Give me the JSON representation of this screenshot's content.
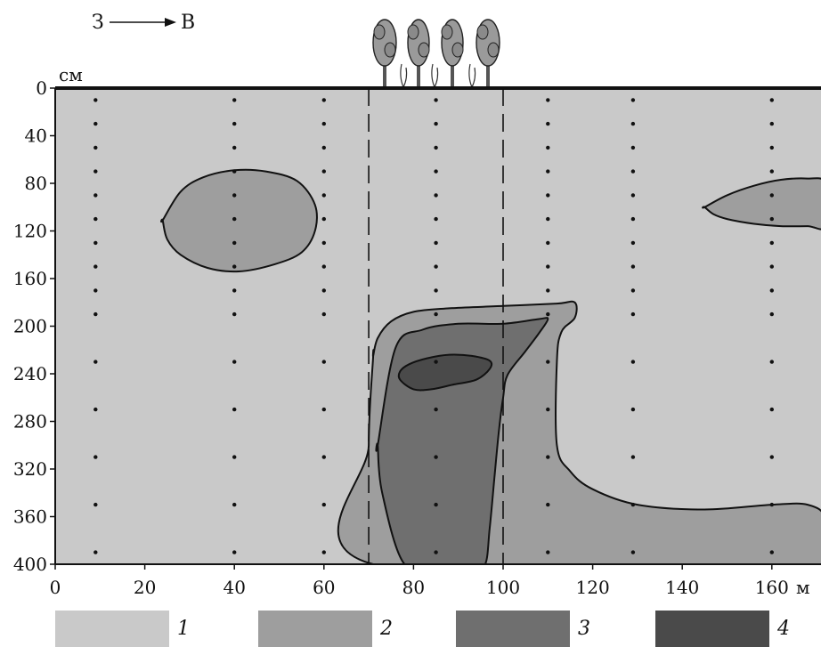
{
  "chart_data": {
    "type": "heatmap",
    "direction": {
      "from": "З",
      "to": "В"
    },
    "y_unit": "см",
    "x_unit": "м",
    "xlim": [
      0,
      172
    ],
    "ylim": [
      0,
      400
    ],
    "x_ticks": [
      0,
      20,
      40,
      60,
      80,
      100,
      120,
      140,
      160
    ],
    "y_ticks": [
      0,
      40,
      80,
      120,
      160,
      200,
      240,
      280,
      320,
      360,
      400
    ],
    "x_tick_labels": [
      "0",
      "20",
      "40",
      "60",
      "80",
      "100",
      "120",
      "140",
      "160"
    ],
    "y_tick_labels": [
      "0",
      "40",
      "80",
      "120",
      "160",
      "200",
      "240",
      "280",
      "320",
      "360",
      "400"
    ],
    "forest_belt_x": [
      70,
      100
    ],
    "sample_columns_x": [
      9,
      40,
      60,
      85,
      110,
      129,
      160
    ],
    "sample_depths": [
      10,
      30,
      50,
      70,
      90,
      110,
      130,
      150,
      170,
      190,
      230,
      270,
      310,
      350,
      390
    ],
    "zones": [
      {
        "class": 2,
        "x": [
          24,
          28,
          33,
          40,
          47,
          54,
          58,
          58,
          55,
          49,
          41,
          34,
          28,
          25,
          24
        ],
        "y": [
          111,
          87,
          75,
          69,
          70,
          78,
          98,
          120,
          138,
          148,
          154,
          151,
          140,
          127,
          111
        ]
      },
      {
        "class": 2,
        "x": [
          145,
          150,
          156,
          162,
          168,
          172,
          172,
          168,
          162,
          156,
          150,
          147,
          145
        ],
        "y": [
          100,
          90,
          82,
          77,
          76,
          80,
          116,
          116,
          116,
          114,
          110,
          106,
          100
        ]
      },
      {
        "class": 2,
        "x": [
          71,
          72,
          75,
          80,
          88,
          100,
          112,
          116,
          116,
          113,
          112,
          112,
          115,
          120,
          130,
          145,
          160,
          168,
          172,
          172,
          71,
          70,
          71
        ],
        "y": [
          225,
          210,
          196,
          188,
          185,
          183,
          181,
          180,
          193,
          205,
          230,
          300,
          322,
          337,
          350,
          354,
          350,
          350,
          362,
          400,
          400,
          300,
          225
        ]
      },
      {
        "class": 3,
        "x": [
          72,
          76,
          82,
          90,
          100,
          108,
          110,
          108,
          105,
          101,
          100,
          99,
          98,
          97,
          96,
          93,
          86,
          78,
          73,
          72
        ],
        "y": [
          300,
          218,
          203,
          198,
          198,
          194,
          194,
          206,
          221,
          241,
          260,
          290,
          330,
          370,
          400,
          400,
          400,
          400,
          340,
          300
        ]
      },
      {
        "class": 4,
        "x": [
          77,
          79,
          83,
          88,
          93,
          97,
          97,
          94,
          89,
          84,
          80,
          77
        ],
        "y": [
          238,
          232,
          227,
          224,
          225,
          229,
          236,
          245,
          249,
          253,
          253,
          245
        ]
      }
    ]
  },
  "legend": {
    "items": [
      {
        "label": "1",
        "color": "#c9c9c9"
      },
      {
        "label": "2",
        "color": "#9e9e9e"
      },
      {
        "label": "3",
        "color": "#6f6f6f"
      },
      {
        "label": "4",
        "color": "#4a4a4a"
      }
    ]
  }
}
